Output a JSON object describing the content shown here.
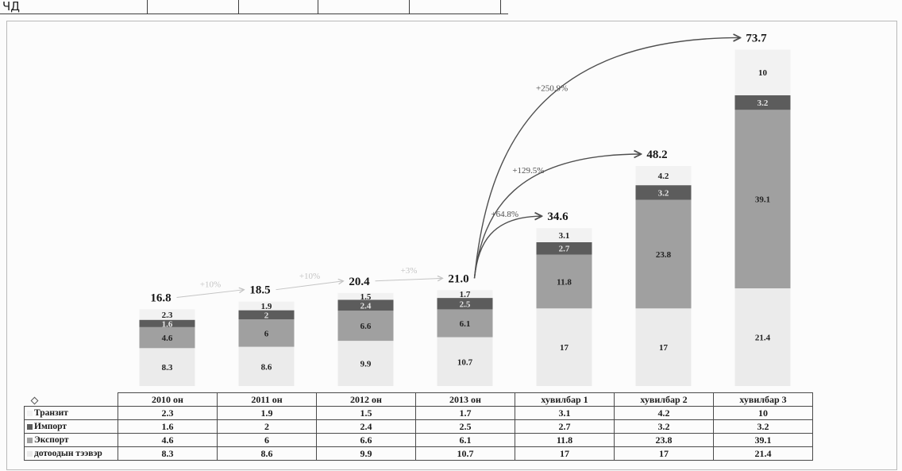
{
  "top_row": {
    "label": "ЧД"
  },
  "chart_data": {
    "type": "bar",
    "stacked": true,
    "categories": [
      "2010 он",
      "2011 он",
      "2012 он",
      "2013 он",
      "хувилбар 1",
      "хувилбар 2",
      "хувилбар 3"
    ],
    "series": [
      {
        "name": "дотоодын тээвэр",
        "values": [
          8.3,
          8.6,
          9.9,
          10.7,
          17,
          17,
          21.4
        ],
        "color": "#ebebeb"
      },
      {
        "name": "Экспорт",
        "values": [
          4.6,
          6,
          6.6,
          6.1,
          11.8,
          23.8,
          39.1
        ],
        "color": "#a0a0a0"
      },
      {
        "name": "Импорт",
        "values": [
          1.6,
          2,
          2.4,
          2.5,
          2.7,
          3.2,
          3.2
        ],
        "color": "#5c5c5c"
      },
      {
        "name": "Транзит",
        "values": [
          2.3,
          1.9,
          1.5,
          1.7,
          3.1,
          4.2,
          10
        ],
        "color": "#f2f2f2"
      }
    ],
    "totals": [
      "16.8",
      "18.5",
      "20.4",
      "21.0",
      "34.6",
      "48.2",
      "73.7"
    ],
    "growth": [
      {
        "from": 0,
        "to": 1,
        "label": "+10%",
        "color": "#c4c4c4"
      },
      {
        "from": 1,
        "to": 2,
        "label": "+10%",
        "color": "#c4c4c4"
      },
      {
        "from": 2,
        "to": 3,
        "label": "+3%",
        "color": "#c4c4c4"
      },
      {
        "from": 3,
        "to": 4,
        "label": "+64.8%",
        "color": "#4f4f4f"
      },
      {
        "from": 3,
        "to": 5,
        "label": "+129.5%",
        "color": "#4f4f4f"
      },
      {
        "from": 3,
        "to": 6,
        "label": "+250.9%",
        "color": "#4f4f4f"
      }
    ],
    "ylim": [
      0,
      75
    ],
    "grid": false,
    "legend": "table-bottom"
  },
  "table": {
    "corner_icon": "diamond-icon"
  }
}
